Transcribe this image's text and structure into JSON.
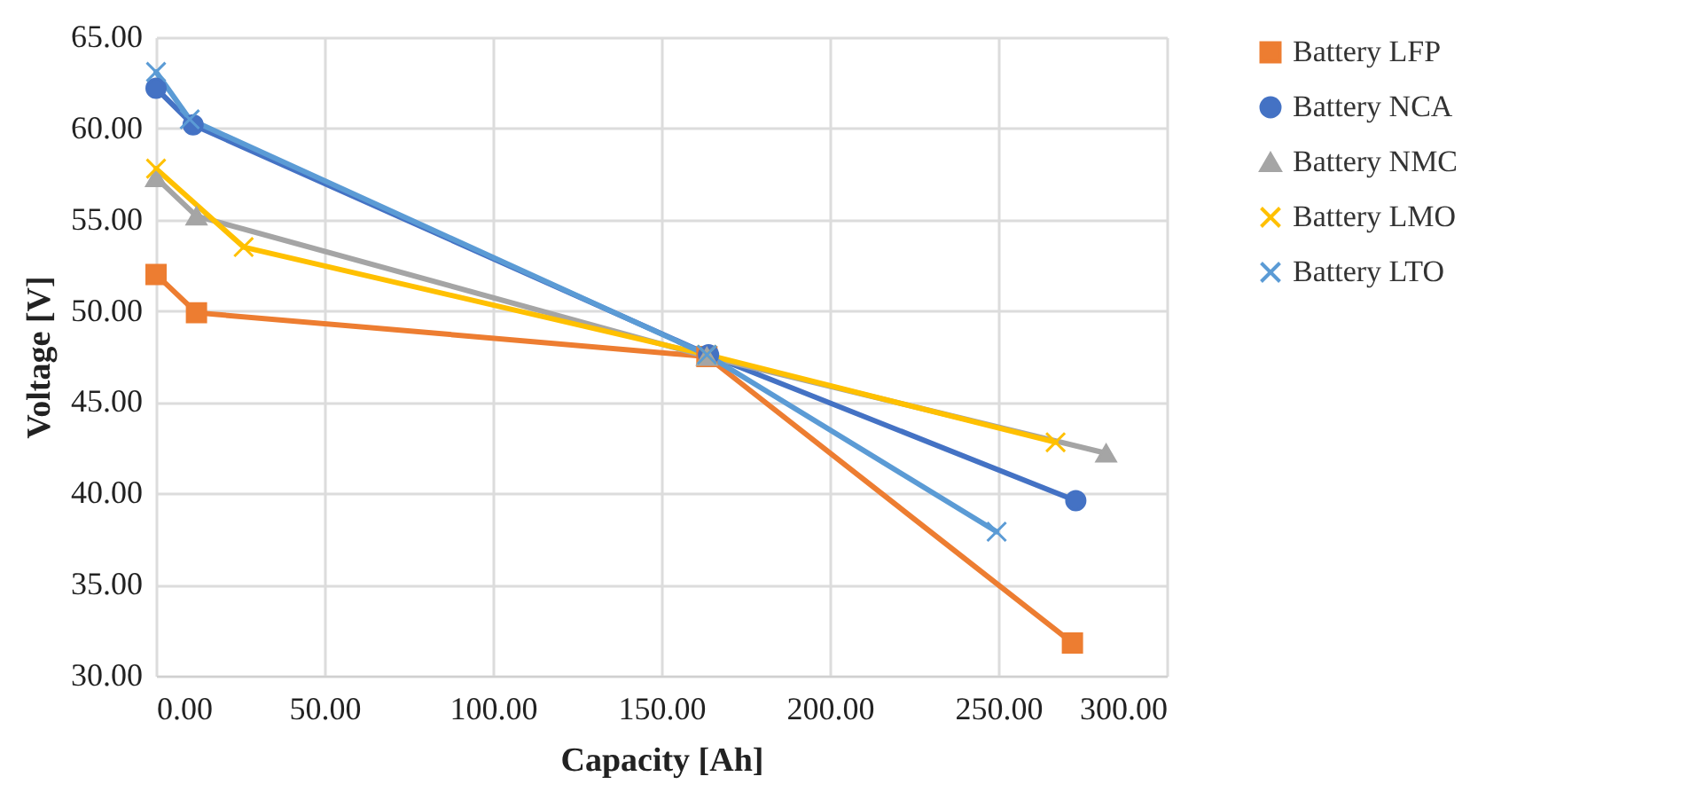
{
  "chart_data": {
    "type": "line",
    "xlabel": "Capacity [Ah]",
    "ylabel": "Voltage [V]",
    "xlim": [
      0,
      300
    ],
    "ylim": [
      30,
      65
    ],
    "xticks": [
      {
        "value": 0,
        "label": "0.00"
      },
      {
        "value": 50,
        "label": "50.00"
      },
      {
        "value": 100,
        "label": "100.00"
      },
      {
        "value": 150,
        "label": "150.00"
      },
      {
        "value": 200,
        "label": "200.00"
      },
      {
        "value": 250,
        "label": "250.00"
      },
      {
        "value": 300,
        "label": "300.00"
      }
    ],
    "yticks": [
      {
        "value": 30,
        "label": "30.00"
      },
      {
        "value": 35,
        "label": "35.00"
      },
      {
        "value": 40,
        "label": "40.00"
      },
      {
        "value": 45,
        "label": "45.00"
      },
      {
        "value": 50,
        "label": "50.00"
      },
      {
        "value": 55,
        "label": "55.00"
      },
      {
        "value": 60,
        "label": "60.00"
      },
      {
        "value": 65,
        "label": "65.00"
      }
    ],
    "grid": true,
    "legend": "right",
    "line_style": "solid",
    "series": [
      {
        "name": "Battery LFP",
        "color": "#ed7d31",
        "marker": "square",
        "x": [
          0,
          12,
          163.5,
          272
        ],
        "values": [
          52.0,
          49.9,
          47.5,
          31.8
        ]
      },
      {
        "name": "Battery NCA",
        "color": "#4472c4",
        "marker": "circle",
        "x": [
          0,
          11,
          164,
          273
        ],
        "values": [
          62.2,
          60.2,
          47.6,
          39.6
        ]
      },
      {
        "name": "Battery NMC",
        "color": "#a5a5a5",
        "marker": "triangle",
        "x": [
          0,
          12,
          163.5,
          282
        ],
        "values": [
          57.3,
          55.2,
          47.5,
          42.2
        ]
      },
      {
        "name": "Battery LMO",
        "color": "#ffc000",
        "marker": "cross",
        "x": [
          0,
          26,
          163.5,
          267
        ],
        "values": [
          57.8,
          53.5,
          47.6,
          42.8
        ]
      },
      {
        "name": "Battery LTO",
        "color": "#5b9bd5",
        "marker": "cross",
        "x": [
          0,
          10,
          163.5,
          249.5
        ],
        "values": [
          63.1,
          60.5,
          47.6,
          37.9
        ]
      }
    ]
  }
}
